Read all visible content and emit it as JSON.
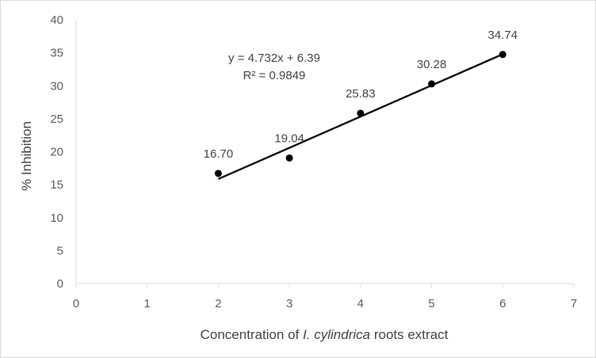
{
  "chart_data": {
    "type": "scatter",
    "title": "",
    "xlabel_parts": [
      "Concentration of ",
      "I. cylindrica",
      " roots extract"
    ],
    "ylabel": "% Inhibition",
    "xlim": [
      0,
      7
    ],
    "ylim": [
      0,
      40
    ],
    "x_ticks": [
      0,
      1,
      2,
      3,
      4,
      5,
      6,
      7
    ],
    "y_ticks": [
      0,
      5,
      10,
      15,
      20,
      25,
      30,
      35,
      40
    ],
    "grid": false,
    "legend": "none",
    "marker_color": "#000000",
    "series": [
      {
        "x": [
          2,
          3,
          4,
          5,
          6
        ],
        "y": [
          16.7,
          19.04,
          25.83,
          30.28,
          34.74
        ],
        "data_labels": [
          "16.70",
          "19.04",
          "25.83",
          "30.28",
          "34.74"
        ]
      }
    ],
    "trendline": {
      "type": "linear",
      "slope": 4.732,
      "intercept": 6.39,
      "x_range": [
        2,
        6
      ],
      "color": "#000000",
      "equation_text": "y = 4.732x + 6.39",
      "r2_text": "R² = 0.9849"
    }
  }
}
